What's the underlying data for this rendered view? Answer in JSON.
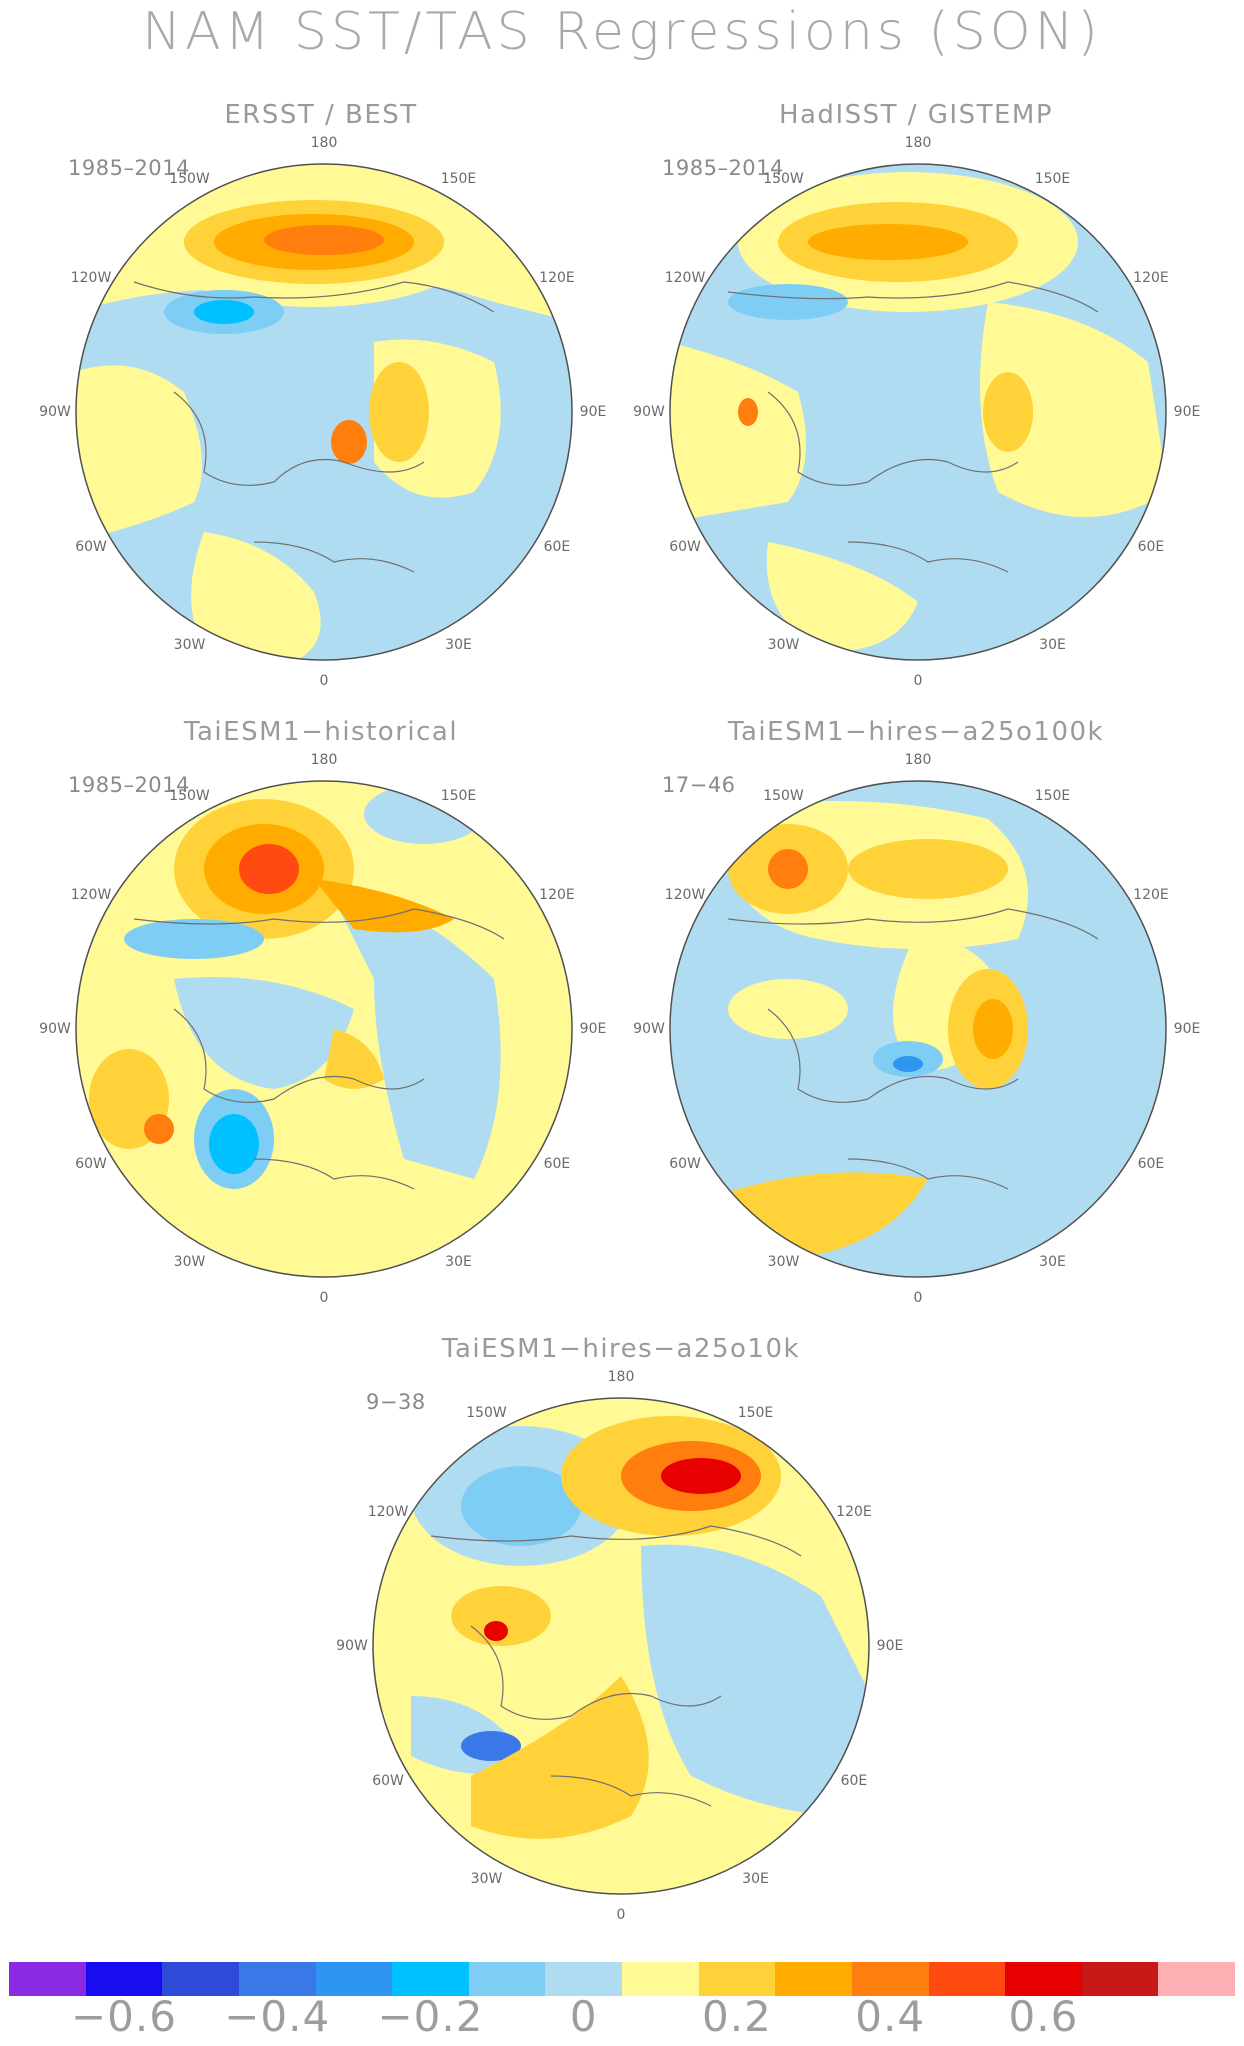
{
  "title": "NAM SST/TAS Regressions (SON)",
  "panels": [
    {
      "id": "p1",
      "title": "ERSST / BEST",
      "period": "1985–2014"
    },
    {
      "id": "p2",
      "title": "HadISST / GISTEMP",
      "period": "1985–2014"
    },
    {
      "id": "p3",
      "title": "TaiESM1−historical",
      "period": "1985–2014"
    },
    {
      "id": "p4",
      "title": "TaiESM1−hires−a25o100k",
      "period": "17−46"
    },
    {
      "id": "p5",
      "title": "TaiESM1−hires−a25o10k",
      "period": "9−38"
    }
  ],
  "lon_labels": {
    "top": "180",
    "top_left": "150W",
    "top_right": "150E",
    "upper_left": "120W",
    "upper_right": "120E",
    "left": "90W",
    "right": "90E",
    "lower_left": "60W",
    "lower_right": "60E",
    "bottom_left": "30W",
    "bottom_right": "30E",
    "bottom": "0"
  },
  "colorbar": {
    "colors": [
      "#8a2be2",
      "#1a0cf0",
      "#2e4ad8",
      "#3a78e8",
      "#2e96f0",
      "#00c0ff",
      "#7ecdf4",
      "#b0dcf2",
      "#fffa96",
      "#ffd23a",
      "#ffab00",
      "#ff7e0e",
      "#ff4a12",
      "#e60000",
      "#c81818",
      "#ffb0b4"
    ],
    "tick_labels": [
      "−0.6",
      "−0.4",
      "−0.2",
      "0",
      "0.2",
      "0.4",
      "0.6"
    ]
  }
}
